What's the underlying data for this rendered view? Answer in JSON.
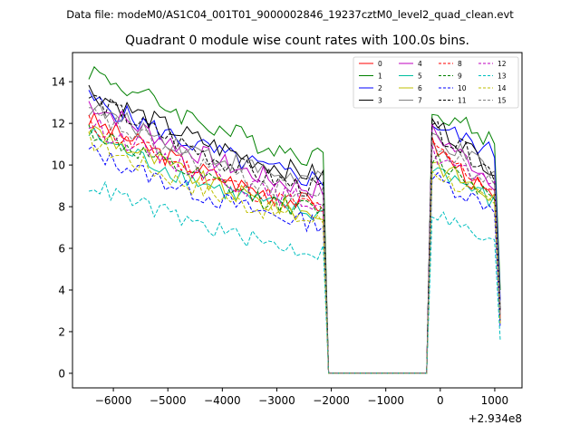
{
  "figure": {
    "suptitle": "Data file: modeM0/AS1C04_001T01_9000002846_19237cztM0_level2_quad_clean.evt"
  },
  "chart_data": {
    "type": "line",
    "title": "Quadrant 0 module wise count rates with 100.0s bins.",
    "xlabel": "",
    "ylabel": "",
    "x_offset_label": "+2.934e8",
    "xlim": [
      -6750,
      1500
    ],
    "ylim": [
      -0.7,
      15.4
    ],
    "x_ticks": [
      -6000,
      -5000,
      -4000,
      -3000,
      -2000,
      -1000,
      0,
      1000
    ],
    "x_tick_labels": [
      "−6000",
      "−5000",
      "−4000",
      "−3000",
      "−2000",
      "−1000",
      "0",
      "1000"
    ],
    "y_ticks": [
      0,
      2,
      4,
      6,
      8,
      10,
      12,
      14
    ],
    "y_tick_labels": [
      "0",
      "2",
      "4",
      "6",
      "8",
      "10",
      "12",
      "14"
    ],
    "grid": false,
    "legend_position": "top-right",
    "segments": [
      {
        "x_start": -6450,
        "x_end": -2150,
        "n": 44
      },
      {
        "x_start": -150,
        "x_end": 1100,
        "n": 13
      }
    ],
    "gap": {
      "x_start": -2050,
      "x_end": -250,
      "value": 0
    },
    "series": [
      {
        "name": "0",
        "color": "#ff0000",
        "dashed": false,
        "start1": 12.2,
        "end1": 8.1,
        "start2": 11.0,
        "end2": 8.0,
        "edge2": 2.5
      },
      {
        "name": "1",
        "color": "#008000",
        "dashed": false,
        "start1": 14.6,
        "end1": 10.4,
        "start2": 12.8,
        "end2": 10.9,
        "edge2": 4.0
      },
      {
        "name": "2",
        "color": "#0000ff",
        "dashed": false,
        "start1": 13.2,
        "end1": 9.3,
        "start2": 12.0,
        "end2": 10.4,
        "edge2": 3.5
      },
      {
        "name": "3",
        "color": "#000000",
        "dashed": false,
        "start1": 13.6,
        "end1": 9.5,
        "start2": 12.1,
        "end2": 9.6,
        "edge2": 3.0
      },
      {
        "name": "4",
        "color": "#bf00bf",
        "dashed": false,
        "start1": 13.0,
        "end1": 8.8,
        "start2": 11.6,
        "end2": 9.0,
        "edge2": 2.8
      },
      {
        "name": "5",
        "color": "#00bf9f",
        "dashed": false,
        "start1": 11.5,
        "end1": 7.6,
        "start2": 10.0,
        "end2": 8.0,
        "edge2": 2.5
      },
      {
        "name": "6",
        "color": "#bfbf00",
        "dashed": false,
        "start1": 11.8,
        "end1": 7.6,
        "start2": 10.2,
        "end2": 8.2,
        "edge2": 2.6
      },
      {
        "name": "7",
        "color": "#808080",
        "dashed": false,
        "start1": 12.8,
        "end1": 9.2,
        "start2": 11.4,
        "end2": 9.4,
        "edge2": 3.2
      },
      {
        "name": "8",
        "color": "#ff0000",
        "dashed": true,
        "start1": 12.0,
        "end1": 8.0,
        "start2": 10.8,
        "end2": 8.6,
        "edge2": 2.4
      },
      {
        "name": "9",
        "color": "#008000",
        "dashed": true,
        "start1": 11.7,
        "end1": 7.8,
        "start2": 10.4,
        "end2": 8.3,
        "edge2": 2.5
      },
      {
        "name": "10",
        "color": "#0000ff",
        "dashed": true,
        "start1": 10.7,
        "end1": 7.2,
        "start2": 9.4,
        "end2": 7.8,
        "edge2": 2.2
      },
      {
        "name": "11",
        "color": "#000000",
        "dashed": true,
        "start1": 13.3,
        "end1": 8.8,
        "start2": 11.8,
        "end2": 9.4,
        "edge2": 3.0
      },
      {
        "name": "12",
        "color": "#bf00bf",
        "dashed": true,
        "start1": 12.0,
        "end1": 8.2,
        "start2": 10.6,
        "end2": 8.6,
        "edge2": 2.6
      },
      {
        "name": "13",
        "color": "#00bfbf",
        "dashed": true,
        "start1": 9.1,
        "end1": 5.8,
        "start2": 7.8,
        "end2": 6.0,
        "edge2": 1.6
      },
      {
        "name": "14",
        "color": "#bfbf00",
        "dashed": true,
        "start1": 11.2,
        "end1": 7.3,
        "start2": 9.8,
        "end2": 7.8,
        "edge2": 2.4
      },
      {
        "name": "15",
        "color": "#808080",
        "dashed": true,
        "start1": 12.5,
        "end1": 8.5,
        "start2": 11.0,
        "end2": 8.8,
        "edge2": 2.8
      }
    ]
  }
}
